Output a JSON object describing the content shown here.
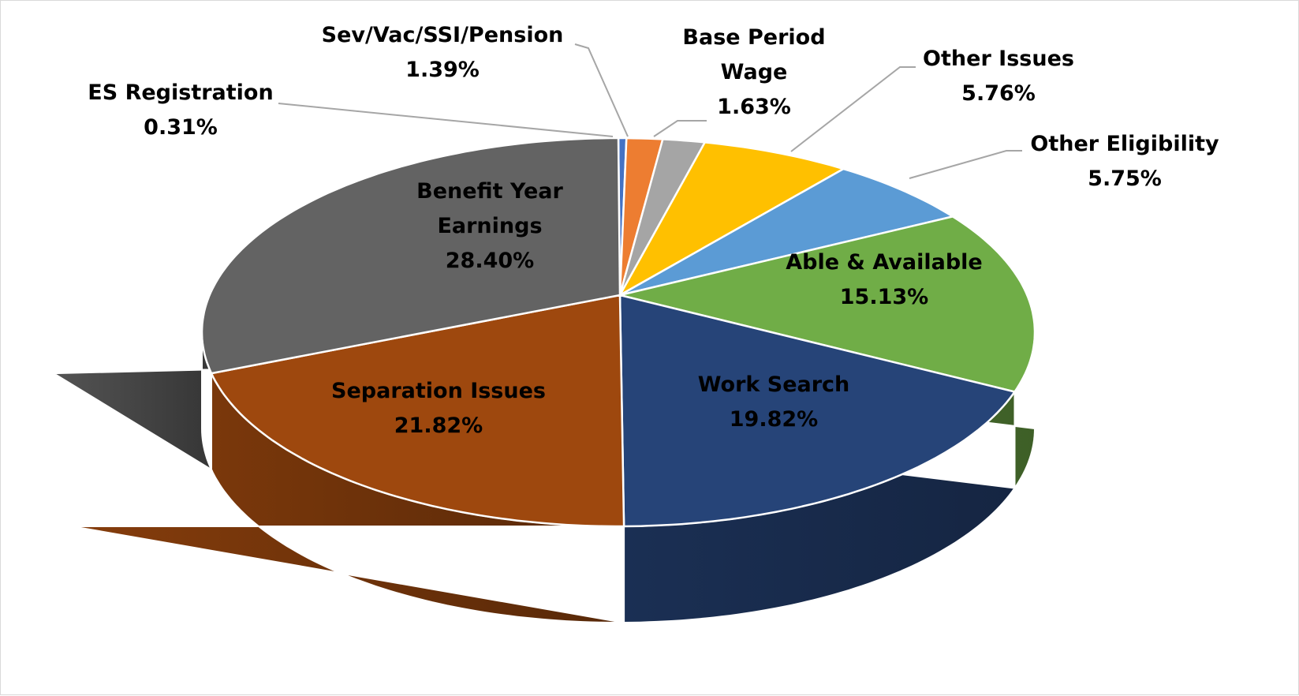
{
  "chart_data": {
    "type": "pie",
    "style": "3d",
    "start": "top",
    "direction": "clockwise",
    "slices": [
      {
        "label": "ES Registration",
        "value": 0.31,
        "display": "0.31%",
        "color": "#4472C4"
      },
      {
        "label": "Sev/Vac/SSI/Pension",
        "value": 1.39,
        "display": "1.39%",
        "color": "#ED7D31"
      },
      {
        "label": "Base Period Wage",
        "display_lines": [
          "Base Period",
          "Wage"
        ],
        "value": 1.63,
        "display": "1.63%",
        "color": "#A5A5A5"
      },
      {
        "label": "Other Issues",
        "value": 5.76,
        "display": "5.76%",
        "color": "#FFC000"
      },
      {
        "label": "Other Eligibility",
        "value": 5.75,
        "display": "5.75%",
        "color": "#5B9BD5"
      },
      {
        "label": "Able & Available",
        "value": 15.13,
        "display": "15.13%",
        "color": "#70AD47"
      },
      {
        "label": "Work Search",
        "value": 19.82,
        "display": "19.82%",
        "color": "#264478"
      },
      {
        "label": "Separation Issues",
        "value": 21.82,
        "display": "21.82%",
        "color": "#9E480E"
      },
      {
        "label": "Benefit Year Earnings",
        "display_lines": [
          "Benefit Year",
          "Earnings"
        ],
        "value": 28.4,
        "display": "28.40%",
        "color": "#636363"
      }
    ]
  }
}
